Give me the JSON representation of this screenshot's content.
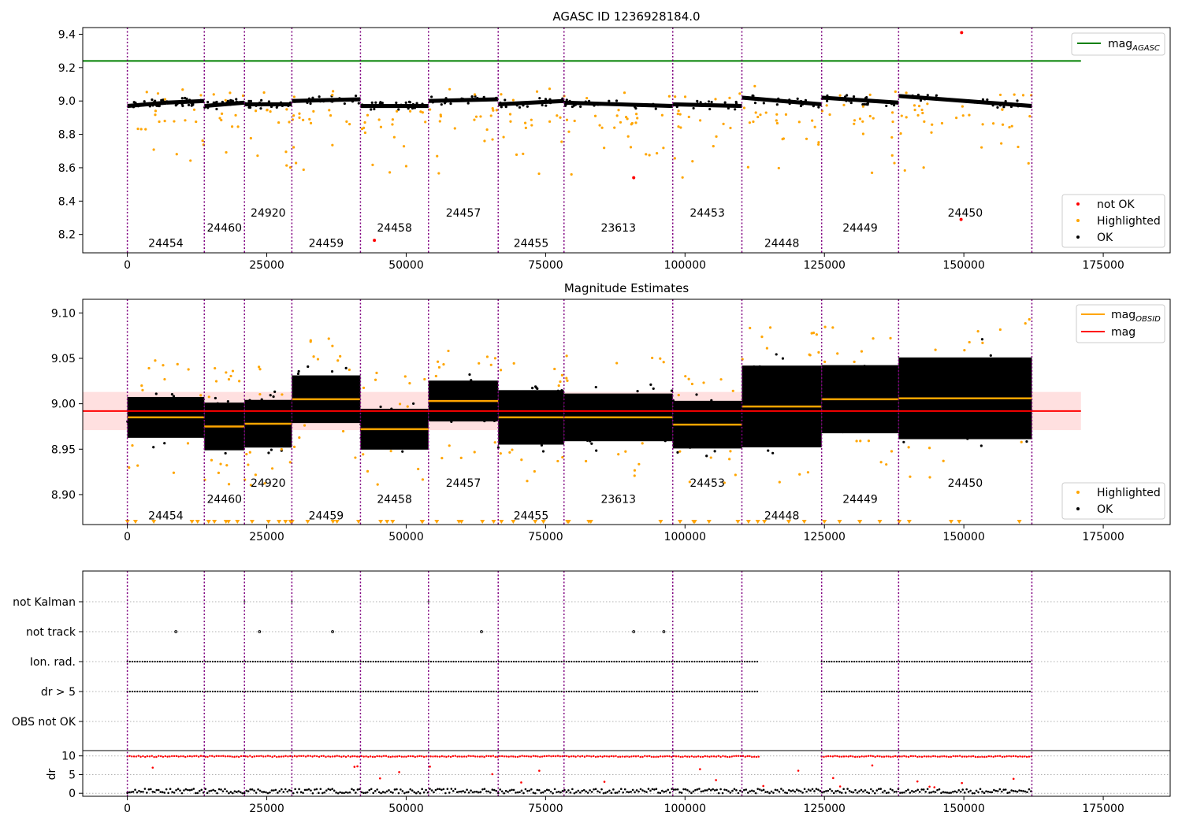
{
  "chart_data": [
    {
      "type": "scatter",
      "title": "AGASC ID 1236928184.0",
      "xlim": [
        -8000,
        187000
      ],
      "ylim": [
        8.09,
        9.44
      ],
      "x_ticks": [
        0,
        25000,
        50000,
        75000,
        100000,
        125000,
        150000,
        175000
      ],
      "y_ticks": [
        8.2,
        8.4,
        8.6,
        8.8,
        9.0,
        9.2,
        9.4
      ],
      "agasc_mag": 9.24,
      "agasc_line_x": [
        -8000,
        171000
      ],
      "legend_top": {
        "position": "top-right",
        "entries": [
          {
            "base": "mag",
            "sub": "AGASC",
            "color": "#008000"
          }
        ]
      },
      "legend_bottom": {
        "position": "bottom-right",
        "entries": [
          {
            "label": "not OK",
            "color": "#ff0000"
          },
          {
            "label": "Highlighted",
            "color": "#ffa500"
          },
          {
            "label": "OK",
            "color": "#000000"
          }
        ]
      },
      "obsids": [
        {
          "label": "24454",
          "x_start": 0,
          "x_end": 13800,
          "label_y": 8.15,
          "mag": 8.985
        },
        {
          "label": "24460",
          "x_start": 13800,
          "x_end": 21000,
          "label_y": 8.24,
          "mag": 8.975
        },
        {
          "label": "24920",
          "x_start": 21000,
          "x_end": 29500,
          "label_y": 8.33,
          "mag": 8.978
        },
        {
          "label": "24459",
          "x_start": 29500,
          "x_end": 41800,
          "label_y": 8.15,
          "mag": 9.005
        },
        {
          "label": "24458",
          "x_start": 41800,
          "x_end": 54000,
          "label_y": 8.24,
          "mag": 8.972
        },
        {
          "label": "24457",
          "x_start": 54000,
          "x_end": 66500,
          "label_y": 8.33,
          "mag": 9.003
        },
        {
          "label": "24455",
          "x_start": 66500,
          "x_end": 78300,
          "label_y": 8.15,
          "mag": 8.985
        },
        {
          "label": "23613",
          "x_start": 78300,
          "x_end": 97800,
          "label_y": 8.24,
          "mag": 8.985
        },
        {
          "label": "24453",
          "x_start": 97800,
          "x_end": 110200,
          "label_y": 8.33,
          "mag": 8.977
        },
        {
          "label": "24448",
          "x_start": 110200,
          "x_end": 124500,
          "label_y": 8.15,
          "mag": 8.997
        },
        {
          "label": "24449",
          "x_start": 124500,
          "x_end": 138300,
          "label_y": 8.24,
          "mag": 9.005
        },
        {
          "label": "24450",
          "x_start": 138300,
          "x_end": 162200,
          "label_y": 8.33,
          "mag": 9.006
        }
      ],
      "x_bounds": [
        0,
        13800,
        21000,
        29500,
        41800,
        54000,
        66500,
        78300,
        97800,
        110200,
        124500,
        138300,
        162200
      ],
      "ok_series_segments": [
        {
          "x_start": 0,
          "x_end": 7000,
          "y_start": 8.97,
          "y_end": 8.99
        },
        {
          "x_start": 7000,
          "x_end": 13800,
          "y_start": 8.99,
          "y_end": 9.0
        },
        {
          "x_start": 13800,
          "x_end": 21000,
          "y_start": 8.97,
          "y_end": 8.99
        },
        {
          "x_start": 21000,
          "x_end": 29500,
          "y_start": 8.98,
          "y_end": 8.98
        },
        {
          "x_start": 29500,
          "x_end": 41800,
          "y_start": 9.0,
          "y_end": 9.01
        },
        {
          "x_start": 41800,
          "x_end": 54000,
          "y_start": 8.97,
          "y_end": 8.97
        },
        {
          "x_start": 54000,
          "x_end": 66500,
          "y_start": 9.0,
          "y_end": 9.01
        },
        {
          "x_start": 66500,
          "x_end": 78300,
          "y_start": 8.98,
          "y_end": 9.0
        },
        {
          "x_start": 78300,
          "x_end": 97800,
          "y_start": 8.99,
          "y_end": 8.97
        },
        {
          "x_start": 97800,
          "x_end": 110200,
          "y_start": 8.98,
          "y_end": 8.97
        },
        {
          "x_start": 110200,
          "x_end": 124500,
          "y_start": 9.02,
          "y_end": 8.98
        },
        {
          "x_start": 124500,
          "x_end": 138300,
          "y_start": 9.02,
          "y_end": 8.99
        },
        {
          "x_start": 138300,
          "x_end": 162200,
          "y_start": 9.03,
          "y_end": 8.97
        }
      ],
      "not_ok_points": [
        [
          44300,
          8.165
        ],
        [
          90800,
          8.54
        ],
        [
          149500,
          8.29
        ],
        [
          149600,
          9.41
        ]
      ]
    },
    {
      "type": "scatter",
      "title": "Magnitude Estimates",
      "xlim": [
        -8000,
        187000
      ],
      "ylim": [
        8.867,
        9.115
      ],
      "x_ticks": [
        0,
        25000,
        50000,
        75000,
        100000,
        125000,
        150000,
        175000
      ],
      "y_ticks": [
        8.9,
        8.95,
        9.0,
        9.05,
        9.1
      ],
      "y_tick_labels": [
        "8.90",
        "8.95",
        "9.00",
        "9.05",
        "9.10"
      ],
      "mag": 8.992,
      "mag_band": [
        8.971,
        9.013
      ],
      "mag_line_x": [
        -8000,
        171000
      ],
      "legend_top": {
        "position": "top-right",
        "entries": [
          {
            "base": "mag",
            "sub": "OBSID",
            "color": "#ffa500"
          },
          {
            "base": "mag",
            "sub": "",
            "color": "#ff0000"
          }
        ]
      },
      "legend_bottom": {
        "position": "bottom-right",
        "entries": [
          {
            "label": "Highlighted",
            "color": "#ffa500"
          },
          {
            "label": "OK",
            "color": "#000000"
          }
        ]
      },
      "obsid_label_y": [
        8.877,
        8.895,
        8.913,
        8.877,
        8.895,
        8.913,
        8.877,
        8.895,
        8.913,
        8.877,
        8.895,
        8.913
      ],
      "obsid_spread": [
        0.03,
        0.035,
        0.035,
        0.035,
        0.03,
        0.03,
        0.04,
        0.035,
        0.035,
        0.06,
        0.05,
        0.06
      ]
    },
    {
      "type": "scatter",
      "title": "",
      "xlim": [
        -8000,
        187000
      ],
      "x_ticks": [
        0,
        25000,
        50000,
        75000,
        100000,
        125000,
        150000,
        175000
      ],
      "flag_rows": [
        "not Kalman",
        "not track",
        "Ion. rad.",
        "dr > 5",
        "OBS not OK"
      ],
      "flag_intervals": {
        "Ion. rad.": [
          [
            0,
            113300
          ],
          [
            124500,
            162200
          ]
        ],
        "dr > 5": [
          [
            0,
            113300
          ],
          [
            124500,
            162200
          ]
        ]
      },
      "not_track_points": [
        8700,
        23700,
        36800,
        63500,
        90800,
        96200
      ],
      "not_kalman_points": [
        21000,
        29500,
        54000
      ],
      "dr_axis": {
        "ylabel": "dr",
        "ylim": [
          -0.8,
          11.2
        ],
        "y_ticks": [
          0,
          5,
          10
        ]
      }
    }
  ]
}
